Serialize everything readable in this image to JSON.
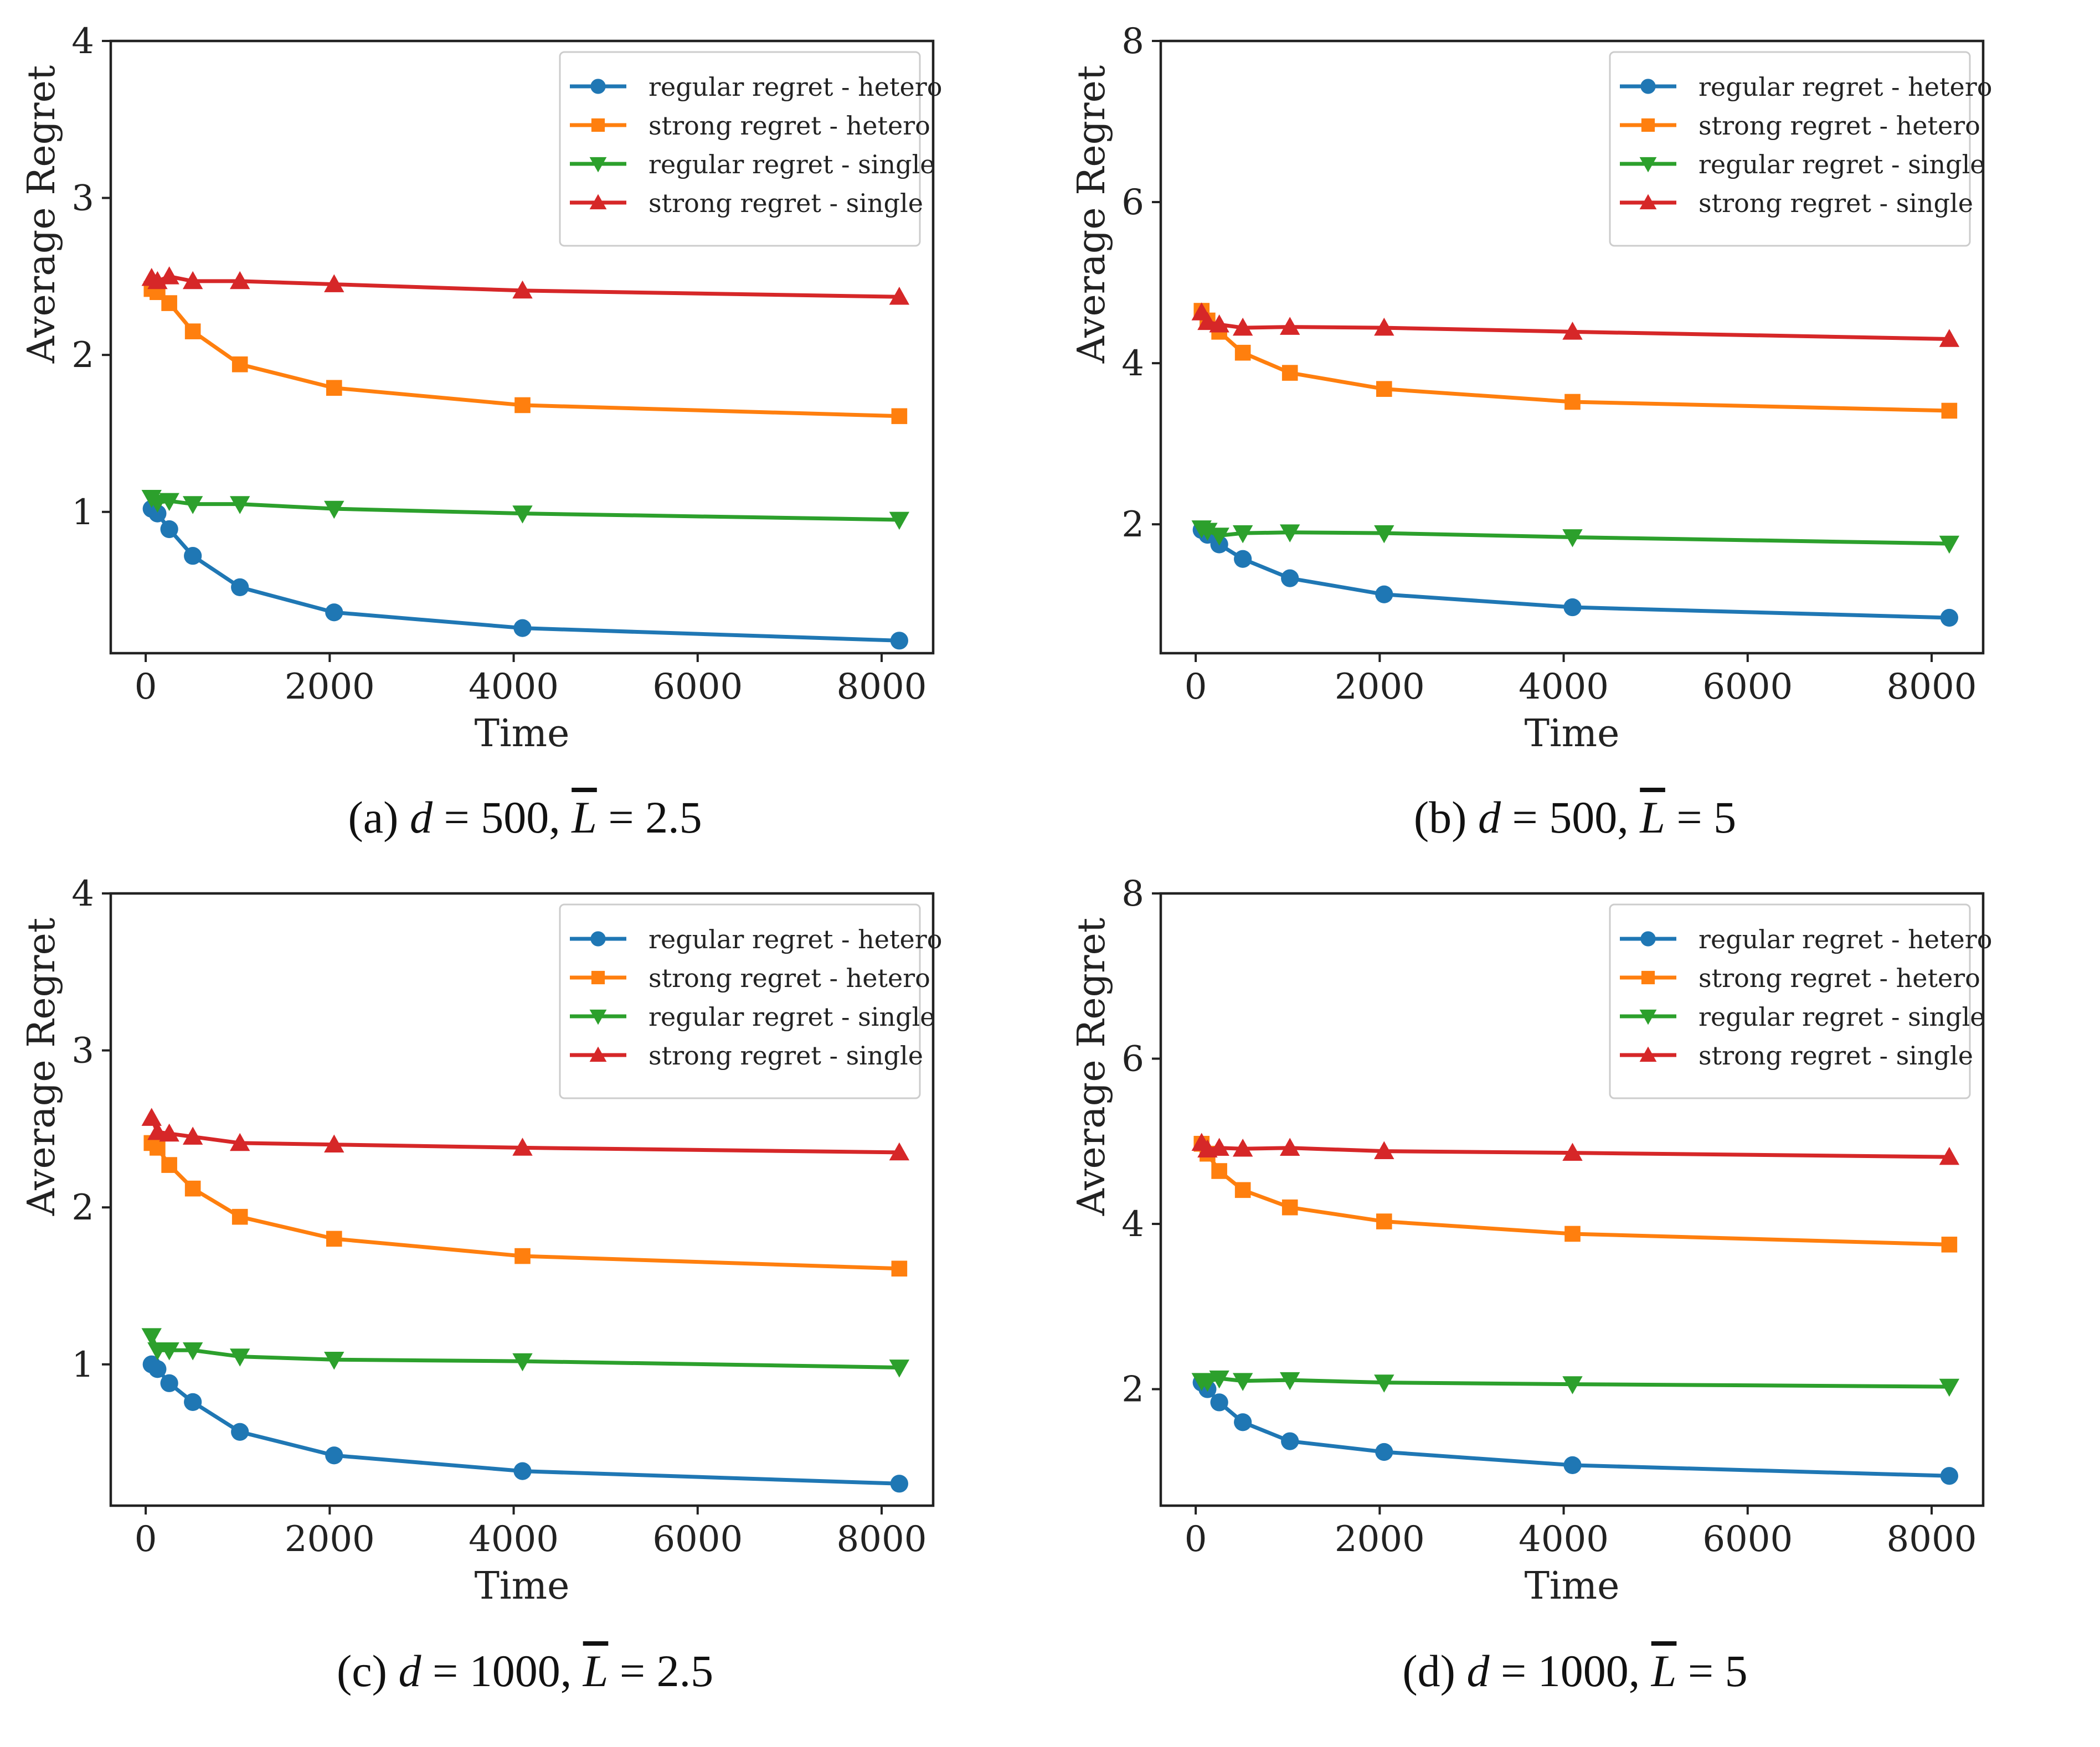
{
  "figure": {
    "captions": [
      {
        "label": "(a)",
        "d": "500",
        "L": "2.5"
      },
      {
        "label": "(b)",
        "d": "500",
        "L": "5"
      },
      {
        "label": "(c)",
        "d": "1000",
        "L": "2.5"
      },
      {
        "label": "(d)",
        "d": "1000",
        "L": "5"
      }
    ]
  },
  "chart_data": [
    {
      "type": "line",
      "title": "(a) d = 500, L̄ = 2.5",
      "xlabel": "Time",
      "ylabel": "Average Regret",
      "xlim": [
        -380,
        8560
      ],
      "ylim": [
        0.1,
        4
      ],
      "xticks": [
        0,
        2000,
        4000,
        6000,
        8000
      ],
      "yticks": [
        1,
        2,
        3,
        4
      ],
      "grid": false,
      "legend_position": "top-right",
      "x": [
        64,
        128,
        256,
        512,
        1024,
        2048,
        4096,
        8192
      ],
      "series": [
        {
          "name": "regular regret - hetero",
          "color": "#1f77b4",
          "marker": "circle",
          "values": [
            1.02,
            0.99,
            0.89,
            0.72,
            0.52,
            0.36,
            0.26,
            0.18
          ]
        },
        {
          "name": "strong regret - hetero",
          "color": "#ff7f0e",
          "marker": "square",
          "values": [
            2.42,
            2.4,
            2.33,
            2.15,
            1.94,
            1.79,
            1.68,
            1.61
          ]
        },
        {
          "name": "regular regret - single",
          "color": "#2ca02c",
          "marker": "triangle-down",
          "values": [
            1.09,
            1.06,
            1.07,
            1.05,
            1.05,
            1.02,
            0.99,
            0.95
          ]
        },
        {
          "name": "strong regret - single",
          "color": "#d62728",
          "marker": "triangle-up",
          "values": [
            2.49,
            2.47,
            2.5,
            2.47,
            2.47,
            2.45,
            2.41,
            2.37
          ]
        }
      ]
    },
    {
      "type": "line",
      "title": "(b) d = 500, L̄ = 5",
      "xlabel": "Time",
      "ylabel": "Average Regret",
      "xlim": [
        -380,
        8560
      ],
      "ylim": [
        0.4,
        8
      ],
      "xticks": [
        0,
        2000,
        4000,
        6000,
        8000
      ],
      "yticks": [
        2,
        4,
        6,
        8
      ],
      "grid": false,
      "legend_position": "top-right",
      "x": [
        64,
        128,
        256,
        512,
        1024,
        2048,
        4096,
        8192
      ],
      "series": [
        {
          "name": "regular regret - hetero",
          "color": "#1f77b4",
          "marker": "circle",
          "values": [
            1.93,
            1.87,
            1.75,
            1.57,
            1.33,
            1.13,
            0.97,
            0.84
          ]
        },
        {
          "name": "strong regret - hetero",
          "color": "#ff7f0e",
          "marker": "square",
          "values": [
            4.65,
            4.53,
            4.39,
            4.13,
            3.88,
            3.68,
            3.52,
            3.41
          ]
        },
        {
          "name": "regular regret - single",
          "color": "#2ca02c",
          "marker": "triangle-down",
          "values": [
            1.95,
            1.92,
            1.86,
            1.89,
            1.9,
            1.89,
            1.84,
            1.76
          ]
        },
        {
          "name": "strong regret - single",
          "color": "#d62728",
          "marker": "triangle-up",
          "values": [
            4.63,
            4.51,
            4.48,
            4.44,
            4.45,
            4.44,
            4.39,
            4.3
          ]
        }
      ]
    },
    {
      "type": "line",
      "title": "(c) d = 1000, L̄ = 2.5",
      "xlabel": "Time",
      "ylabel": "Average Regret",
      "xlim": [
        -380,
        8560
      ],
      "ylim": [
        0.1,
        4
      ],
      "xticks": [
        0,
        2000,
        4000,
        6000,
        8000
      ],
      "yticks": [
        1,
        2,
        3,
        4
      ],
      "grid": false,
      "legend_position": "top-right",
      "x": [
        64,
        128,
        256,
        512,
        1024,
        2048,
        4096,
        8192
      ],
      "series": [
        {
          "name": "regular regret - hetero",
          "color": "#1f77b4",
          "marker": "circle",
          "values": [
            1.0,
            0.97,
            0.88,
            0.76,
            0.57,
            0.42,
            0.32,
            0.24
          ]
        },
        {
          "name": "strong regret - hetero",
          "color": "#ff7f0e",
          "marker": "square",
          "values": [
            2.41,
            2.38,
            2.27,
            2.12,
            1.94,
            1.8,
            1.69,
            1.61
          ]
        },
        {
          "name": "regular regret - single",
          "color": "#2ca02c",
          "marker": "triangle-down",
          "values": [
            1.18,
            1.09,
            1.09,
            1.09,
            1.05,
            1.03,
            1.02,
            0.98
          ]
        },
        {
          "name": "strong regret - single",
          "color": "#d62728",
          "marker": "triangle-up",
          "values": [
            2.57,
            2.48,
            2.47,
            2.45,
            2.41,
            2.4,
            2.38,
            2.35
          ]
        }
      ]
    },
    {
      "type": "line",
      "title": "(d) d = 1000, L̄ = 5",
      "xlabel": "Time",
      "ylabel": "Average Regret",
      "xlim": [
        -380,
        8560
      ],
      "ylim": [
        0.59,
        8
      ],
      "xticks": [
        0,
        2000,
        4000,
        6000,
        8000
      ],
      "yticks": [
        2,
        4,
        6,
        8
      ],
      "grid": false,
      "legend_position": "top-right",
      "x": [
        64,
        128,
        256,
        512,
        1024,
        2048,
        4096,
        8192
      ],
      "series": [
        {
          "name": "regular regret - hetero",
          "color": "#1f77b4",
          "marker": "circle",
          "values": [
            2.08,
            2.0,
            1.84,
            1.6,
            1.37,
            1.24,
            1.08,
            0.95
          ]
        },
        {
          "name": "strong regret - hetero",
          "color": "#ff7f0e",
          "marker": "square",
          "values": [
            4.97,
            4.85,
            4.64,
            4.41,
            4.2,
            4.03,
            3.88,
            3.75
          ]
        },
        {
          "name": "regular regret - single",
          "color": "#2ca02c",
          "marker": "triangle-down",
          "values": [
            2.1,
            2.09,
            2.13,
            2.1,
            2.11,
            2.08,
            2.06,
            2.03
          ]
        },
        {
          "name": "strong regret - single",
          "color": "#d62728",
          "marker": "triangle-up",
          "values": [
            4.98,
            4.9,
            4.92,
            4.91,
            4.92,
            4.88,
            4.86,
            4.81
          ]
        }
      ]
    }
  ]
}
